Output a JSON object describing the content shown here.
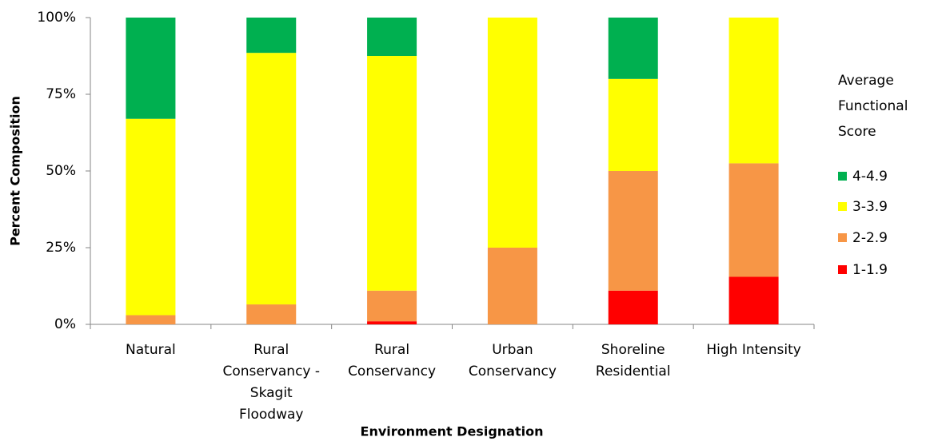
{
  "chart_data": {
    "type": "stacked_bar",
    "y_label": "Percent Composition",
    "x_label": "Environment Designation",
    "legend_title": [
      "Average",
      "Functional",
      "Score"
    ],
    "categories": [
      [
        "Natural"
      ],
      [
        "Rural",
        "Conservancy -",
        "Skagit",
        "Floodway"
      ],
      [
        "Rural",
        "Conservancy"
      ],
      [
        "Urban",
        "Conservancy"
      ],
      [
        "Shoreline",
        "Residential"
      ],
      [
        "High Intensity"
      ]
    ],
    "series": [
      {
        "name": "1-1.9",
        "color": "#ff0000",
        "values": [
          0,
          0,
          1,
          0,
          11,
          15.5
        ]
      },
      {
        "name": "2-2.9",
        "color": "#f79646",
        "values": [
          3,
          6.5,
          10,
          25,
          39,
          37
        ]
      },
      {
        "name": "3-3.9",
        "color": "#ffff00",
        "values": [
          64,
          82,
          76.5,
          75,
          30,
          47.5
        ]
      },
      {
        "name": "4-4.9",
        "color": "#00b050",
        "values": [
          33,
          11.5,
          12.5,
          0,
          20,
          0
        ]
      }
    ],
    "ylim": [
      0,
      100
    ],
    "yticks": [
      {
        "value": 0,
        "label": "0%"
      },
      {
        "value": 25,
        "label": "25%"
      },
      {
        "value": 50,
        "label": "50%"
      },
      {
        "value": 75,
        "label": "75%"
      },
      {
        "value": 100,
        "label": "100%"
      }
    ],
    "legend": "right"
  }
}
